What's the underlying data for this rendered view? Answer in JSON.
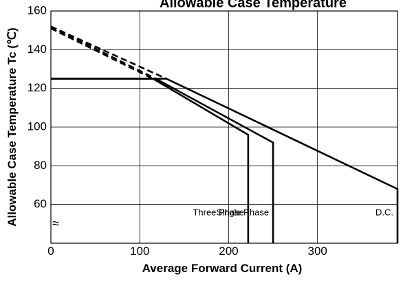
{
  "chart_data": {
    "type": "line",
    "title": "Allowable Case Temperature",
    "xlabel": "Average Forward Current (A)",
    "ylabel": "Allowable Case Temperature Tc (℃)",
    "xlim": [
      0,
      390
    ],
    "ylim": [
      40,
      160
    ],
    "x_ticks": [
      "0",
      "100",
      "200",
      "300"
    ],
    "x_tick_values": [
      0,
      100,
      200,
      300
    ],
    "y_ticks": [
      "160",
      "140",
      "120",
      "100",
      "80",
      "60"
    ],
    "y_tick_values": [
      160,
      140,
      120,
      100,
      80,
      60
    ],
    "axis_break_symbol": "≈",
    "grid": true,
    "series": [
      {
        "name": "Three Phase",
        "points": [
          [
            0,
            125
          ],
          [
            115,
            125
          ],
          [
            222,
            96
          ],
          [
            222,
            40
          ]
        ],
        "extrapolation": [
          [
            0,
            151
          ],
          [
            115,
            125
          ]
        ]
      },
      {
        "name": "Single Phase",
        "points": [
          [
            0,
            125
          ],
          [
            118,
            125
          ],
          [
            250,
            92
          ],
          [
            250,
            40
          ]
        ],
        "extrapolation": [
          [
            0,
            152
          ],
          [
            118,
            125
          ]
        ]
      },
      {
        "name": "D.C.",
        "points": [
          [
            0,
            125
          ],
          [
            130,
            125
          ],
          [
            390,
            68
          ],
          [
            390,
            40
          ]
        ],
        "extrapolation": [
          [
            0,
            152
          ],
          [
            130,
            125
          ]
        ]
      }
    ]
  }
}
